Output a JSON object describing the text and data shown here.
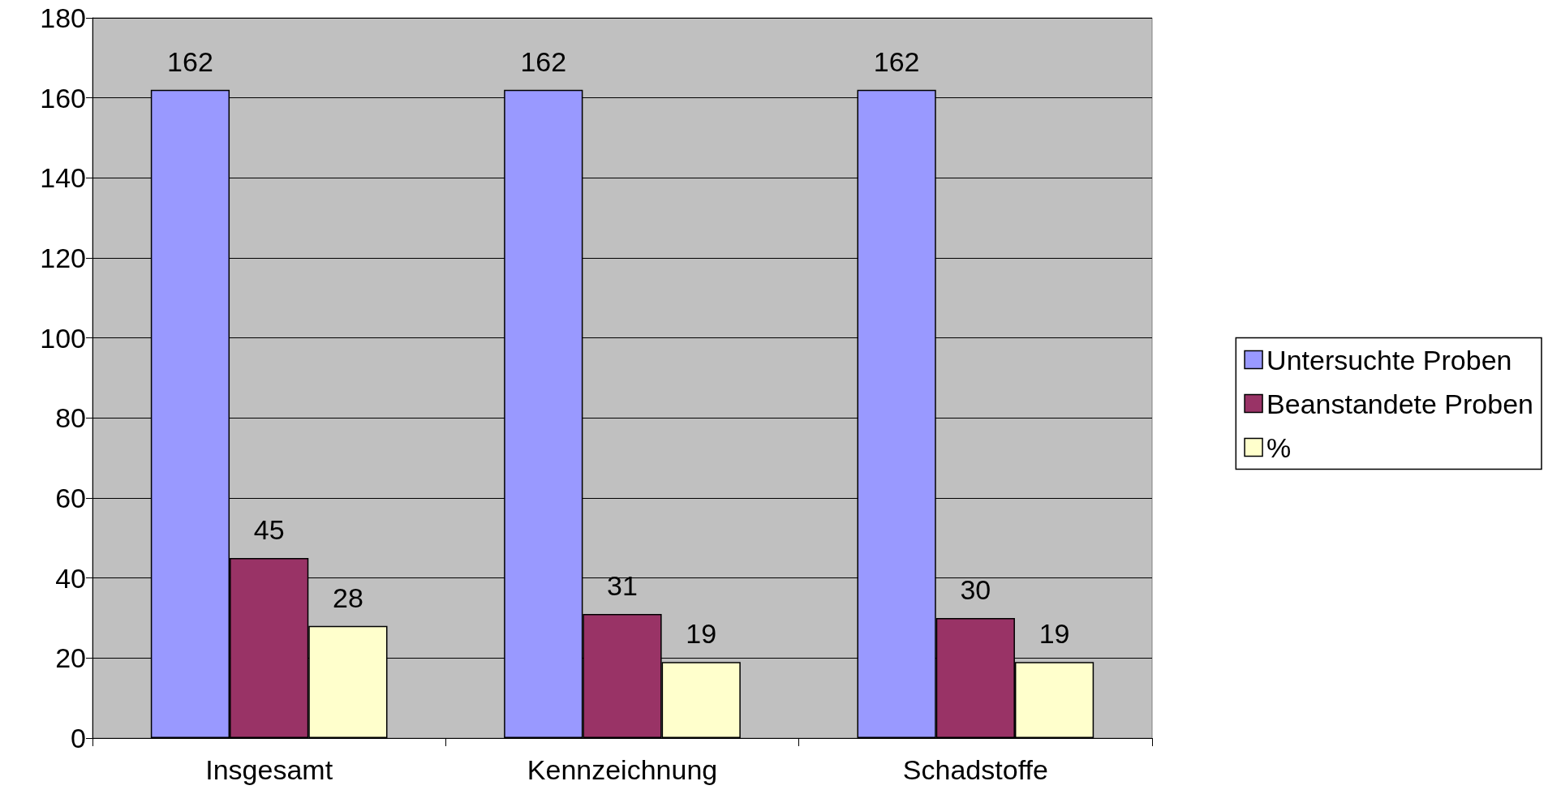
{
  "chart_data": {
    "type": "bar",
    "categories": [
      "Insgesamt",
      "Kennzeichnung",
      "Schadstoffe"
    ],
    "series": [
      {
        "name": "Untersuchte Proben",
        "color": "#9999ff",
        "values": [
          162,
          162,
          162
        ]
      },
      {
        "name": "Beanstandete Proben",
        "color": "#993366",
        "values": [
          45,
          31,
          30
        ]
      },
      {
        "name": "%",
        "color": "#ffffcc",
        "values": [
          28,
          19,
          19
        ]
      }
    ],
    "ylim": [
      0,
      180
    ],
    "yticks": [
      0,
      20,
      40,
      60,
      80,
      100,
      120,
      140,
      160,
      180
    ],
    "grid": "y",
    "legend": "right",
    "data_labels": true
  }
}
